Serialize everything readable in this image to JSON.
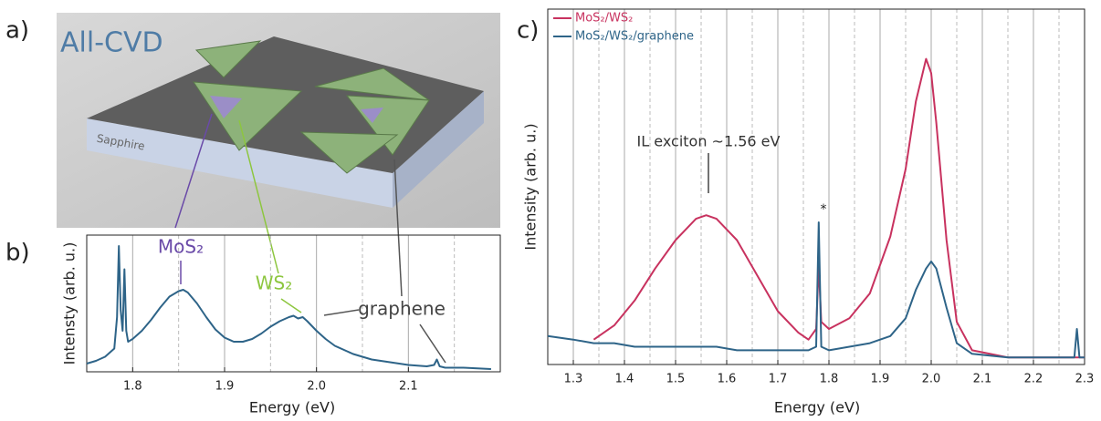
{
  "figure": {
    "panel_labels": [
      "a)",
      "b)",
      "c)"
    ],
    "illustration": {
      "title": "All-CVD",
      "substrate": "Sapphire"
    }
  },
  "chart_data": [
    {
      "type": "line",
      "x_label": "Energy (eV)",
      "y_label": "Intensty (arb. u.)",
      "color": "#2e6488",
      "x": [
        1.75,
        1.76,
        1.77,
        1.78,
        1.783,
        1.785,
        1.787,
        1.789,
        1.791,
        1.793,
        1.795,
        1.8,
        1.81,
        1.82,
        1.83,
        1.84,
        1.85,
        1.855,
        1.86,
        1.87,
        1.88,
        1.89,
        1.9,
        1.91,
        1.92,
        1.93,
        1.94,
        1.95,
        1.96,
        1.97,
        1.975,
        1.98,
        1.985,
        1.99,
        2.0,
        2.01,
        2.02,
        2.04,
        2.06,
        2.08,
        2.1,
        2.12,
        2.128,
        2.131,
        2.134,
        2.14,
        2.16,
        2.19
      ],
      "values": [
        0.06,
        0.08,
        0.11,
        0.17,
        0.4,
        0.92,
        0.45,
        0.3,
        0.75,
        0.3,
        0.22,
        0.24,
        0.3,
        0.38,
        0.47,
        0.55,
        0.59,
        0.6,
        0.58,
        0.5,
        0.4,
        0.31,
        0.25,
        0.22,
        0.22,
        0.24,
        0.28,
        0.33,
        0.37,
        0.4,
        0.41,
        0.39,
        0.4,
        0.37,
        0.3,
        0.24,
        0.19,
        0.13,
        0.09,
        0.07,
        0.05,
        0.04,
        0.05,
        0.09,
        0.04,
        0.03,
        0.03,
        0.02
      ],
      "xlim": [
        1.75,
        2.2
      ],
      "ylim": [
        0,
        1
      ],
      "xticks": [
        1.8,
        1.9,
        {
          "value": 2,
          "label": "2.0"
        },
        2.1
      ],
      "xgrid_minor": [
        1.85,
        1.95,
        2.05,
        2.15
      ],
      "grid": true,
      "annotations": [
        "MoS₂",
        "WS₂",
        "graphene"
      ]
    },
    {
      "type": "line",
      "x_label": "Energy (eV)",
      "y_label": "Intensity (arb. u.)",
      "x": [
        1.25,
        1.3,
        1.34,
        1.38,
        1.42,
        1.46,
        1.5,
        1.54,
        1.56,
        1.58,
        1.62,
        1.66,
        1.7,
        1.74,
        1.76,
        1.775,
        1.78,
        1.785,
        1.8,
        1.84,
        1.88,
        1.92,
        1.95,
        1.97,
        1.99,
        2.0,
        2.01,
        2.03,
        2.05,
        2.08,
        2.15,
        2.25,
        2.28,
        2.285,
        2.29,
        2.3
      ],
      "series": [
        {
          "name": "MoS₂/WS₂",
          "color": "#c8325f",
          "values": [
            null,
            null,
            0.07,
            0.11,
            0.18,
            0.27,
            0.35,
            0.41,
            0.42,
            0.41,
            0.35,
            0.25,
            0.15,
            0.09,
            0.07,
            0.1,
            0.28,
            0.12,
            0.1,
            0.13,
            0.2,
            0.36,
            0.55,
            0.74,
            0.86,
            0.82,
            0.68,
            0.35,
            0.12,
            0.04,
            0.02,
            0.02,
            0.02,
            0.02,
            0.02,
            0.02
          ]
        },
        {
          "name": "MoS₂/WS₂/graphene",
          "color": "#2e6488",
          "values": [
            0.08,
            0.07,
            0.06,
            0.06,
            0.05,
            0.05,
            0.05,
            0.05,
            0.05,
            0.05,
            0.04,
            0.04,
            0.04,
            0.04,
            0.04,
            0.05,
            0.4,
            0.05,
            0.04,
            0.05,
            0.06,
            0.08,
            0.13,
            0.21,
            0.27,
            0.29,
            0.27,
            0.16,
            0.06,
            0.03,
            0.02,
            0.02,
            0.02,
            0.1,
            0.02,
            0.02
          ]
        }
      ],
      "xlim": [
        1.25,
        2.3
      ],
      "ylim": [
        0,
        1
      ],
      "xticks": [
        1.3,
        1.4,
        1.5,
        1.6,
        1.7,
        1.8,
        1.9,
        {
          "value": 2,
          "label": "2.0"
        },
        2.1,
        2.2,
        2.3
      ],
      "xgrid_minor": [
        1.35,
        1.45,
        1.55,
        1.65,
        1.75,
        1.85,
        1.95,
        2.05,
        2.15,
        2.25
      ],
      "grid": true,
      "legend": "top-left",
      "annotations": [
        "IL exciton ~1.56 eV",
        "*"
      ]
    }
  ]
}
